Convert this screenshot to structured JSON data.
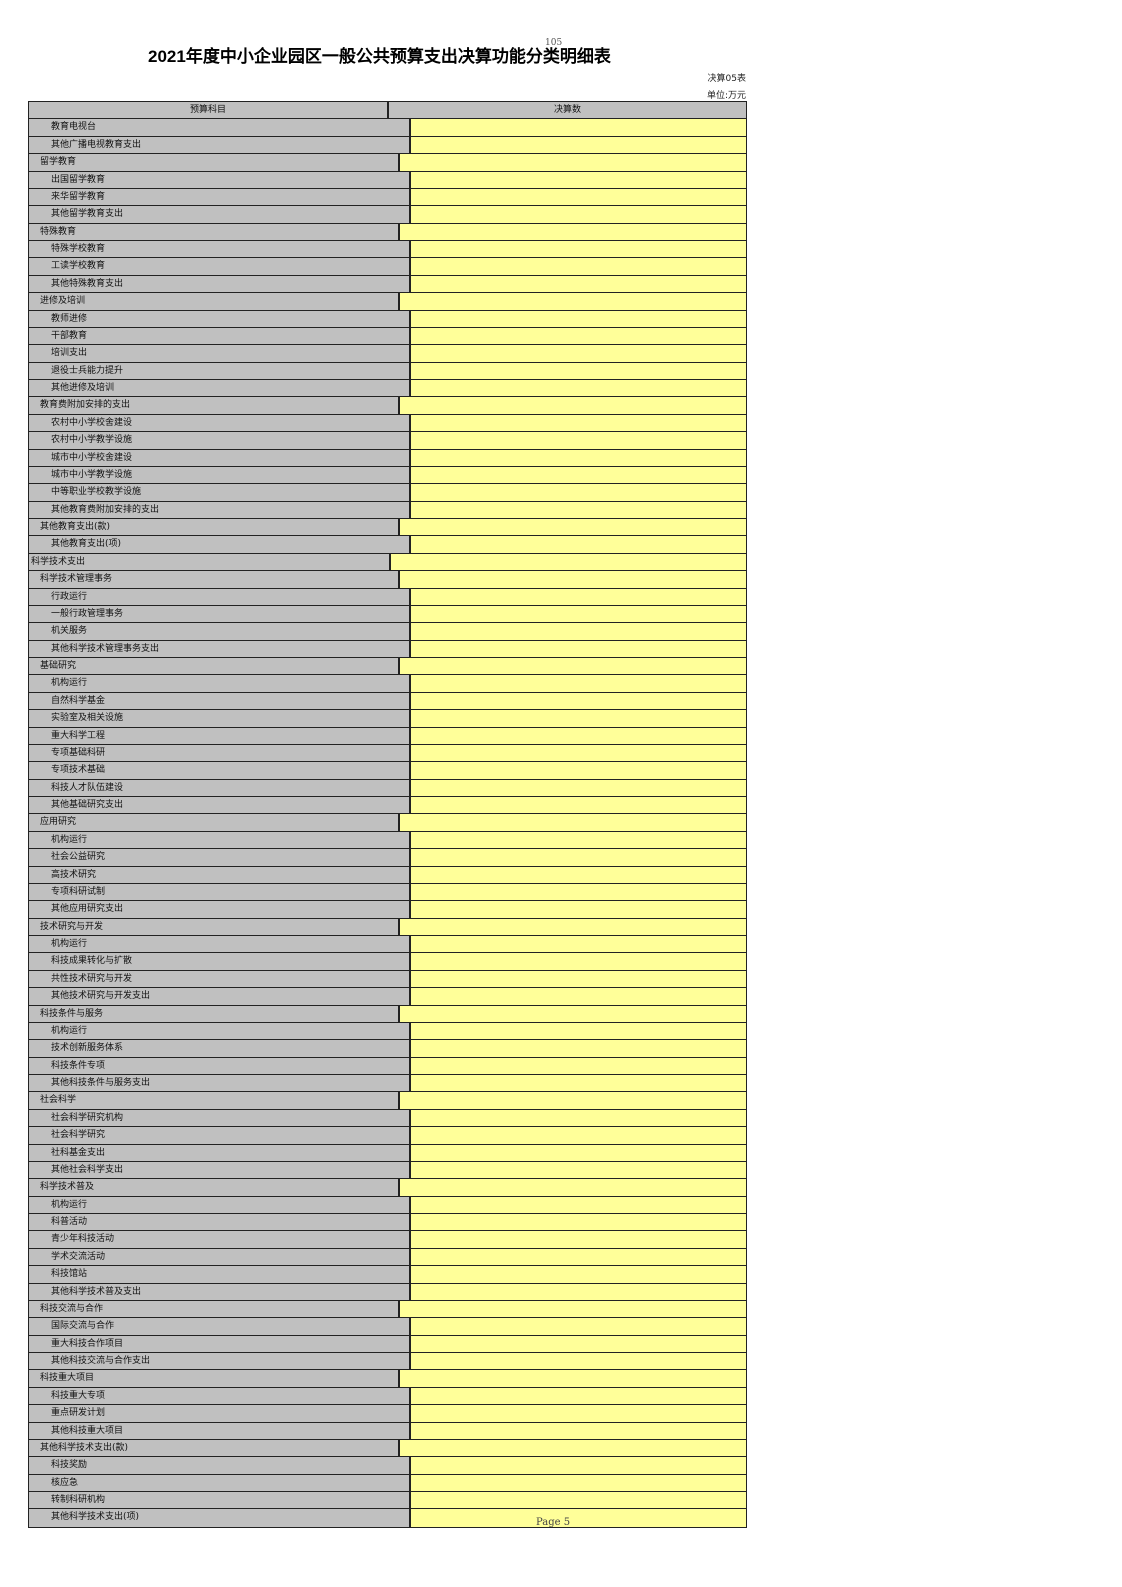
{
  "title": "2021年度中小企业园区一般公共预算支出决算功能分类明细表",
  "overlay_text": "105",
  "table_code": "决算05表",
  "unit": "单位:万元",
  "headers": [
    "预算科目",
    "决算数"
  ],
  "rows": [
    {
      "label": "教育电视台",
      "level": 2
    },
    {
      "label": "其他广播电视教育支出",
      "level": 2
    },
    {
      "label": "留学教育",
      "level": 1
    },
    {
      "label": "出国留学教育",
      "level": 2
    },
    {
      "label": "来华留学教育",
      "level": 2
    },
    {
      "label": "其他留学教育支出",
      "level": 2
    },
    {
      "label": "特殊教育",
      "level": 1
    },
    {
      "label": "特殊学校教育",
      "level": 2
    },
    {
      "label": "工读学校教育",
      "level": 2
    },
    {
      "label": "其他特殊教育支出",
      "level": 2
    },
    {
      "label": "进修及培训",
      "level": 1
    },
    {
      "label": "教师进修",
      "level": 2
    },
    {
      "label": "干部教育",
      "level": 2
    },
    {
      "label": "培训支出",
      "level": 2
    },
    {
      "label": "退役士兵能力提升",
      "level": 2
    },
    {
      "label": "其他进修及培训",
      "level": 2
    },
    {
      "label": "教育费附加安排的支出",
      "level": 1
    },
    {
      "label": "农村中小学校舍建设",
      "level": 2
    },
    {
      "label": "农村中小学教学设施",
      "level": 2
    },
    {
      "label": "城市中小学校舍建设",
      "level": 2
    },
    {
      "label": "城市中小学教学设施",
      "level": 2
    },
    {
      "label": "中等职业学校教学设施",
      "level": 2
    },
    {
      "label": "其他教育费附加安排的支出",
      "level": 2
    },
    {
      "label": "其他教育支出(款)",
      "level": 1
    },
    {
      "label": "其他教育支出(项)",
      "level": 2
    },
    {
      "label": "科学技术支出",
      "level": 0
    },
    {
      "label": "科学技术管理事务",
      "level": 1
    },
    {
      "label": "行政运行",
      "level": 2
    },
    {
      "label": "一般行政管理事务",
      "level": 2
    },
    {
      "label": "机关服务",
      "level": 2
    },
    {
      "label": "其他科学技术管理事务支出",
      "level": 2
    },
    {
      "label": "基础研究",
      "level": 1
    },
    {
      "label": "机构运行",
      "level": 2
    },
    {
      "label": "自然科学基金",
      "level": 2
    },
    {
      "label": "实验室及相关设施",
      "level": 2
    },
    {
      "label": "重大科学工程",
      "level": 2
    },
    {
      "label": "专项基础科研",
      "level": 2
    },
    {
      "label": "专项技术基础",
      "level": 2
    },
    {
      "label": "科技人才队伍建设",
      "level": 2
    },
    {
      "label": "其他基础研究支出",
      "level": 2
    },
    {
      "label": "应用研究",
      "level": 1
    },
    {
      "label": "机构运行",
      "level": 2
    },
    {
      "label": "社会公益研究",
      "level": 2
    },
    {
      "label": "高技术研究",
      "level": 2
    },
    {
      "label": "专项科研试制",
      "level": 2
    },
    {
      "label": "其他应用研究支出",
      "level": 2
    },
    {
      "label": "技术研究与开发",
      "level": 1
    },
    {
      "label": "机构运行",
      "level": 2
    },
    {
      "label": "科技成果转化与扩散",
      "level": 2
    },
    {
      "label": "共性技术研究与开发",
      "level": 2
    },
    {
      "label": "其他技术研究与开发支出",
      "level": 2
    },
    {
      "label": "科技条件与服务",
      "level": 1
    },
    {
      "label": "机构运行",
      "level": 2
    },
    {
      "label": "技术创新服务体系",
      "level": 2
    },
    {
      "label": "科技条件专项",
      "level": 2
    },
    {
      "label": "其他科技条件与服务支出",
      "level": 2
    },
    {
      "label": "社会科学",
      "level": 1
    },
    {
      "label": "社会科学研究机构",
      "level": 2
    },
    {
      "label": "社会科学研究",
      "level": 2
    },
    {
      "label": "社科基金支出",
      "level": 2
    },
    {
      "label": "其他社会科学支出",
      "level": 2
    },
    {
      "label": "科学技术普及",
      "level": 1
    },
    {
      "label": "机构运行",
      "level": 2
    },
    {
      "label": "科普活动",
      "level": 2
    },
    {
      "label": "青少年科技活动",
      "level": 2
    },
    {
      "label": "学术交流活动",
      "level": 2
    },
    {
      "label": "科技馆站",
      "level": 2
    },
    {
      "label": "其他科学技术普及支出",
      "level": 2
    },
    {
      "label": "科技交流与合作",
      "level": 1
    },
    {
      "label": "国际交流与合作",
      "level": 2
    },
    {
      "label": "重大科技合作项目",
      "level": 2
    },
    {
      "label": "其他科技交流与合作支出",
      "level": 2
    },
    {
      "label": "科技重大项目",
      "level": 1
    },
    {
      "label": "科技重大专项",
      "level": 2
    },
    {
      "label": "重点研发计划",
      "level": 2
    },
    {
      "label": "其他科技重大项目",
      "level": 2
    },
    {
      "label": "其他科学技术支出(款)",
      "level": 1
    },
    {
      "label": "科技奖励",
      "level": 2
    },
    {
      "label": "核应急",
      "level": 2
    },
    {
      "label": "转制科研机构",
      "level": 2
    },
    {
      "label": "其他科学技术支出(项)",
      "level": 2
    }
  ],
  "footer": "Page  5",
  "colors": {
    "label_cell": "#c0c0c0",
    "value_cell": "#ffff99",
    "border": "#222222"
  }
}
